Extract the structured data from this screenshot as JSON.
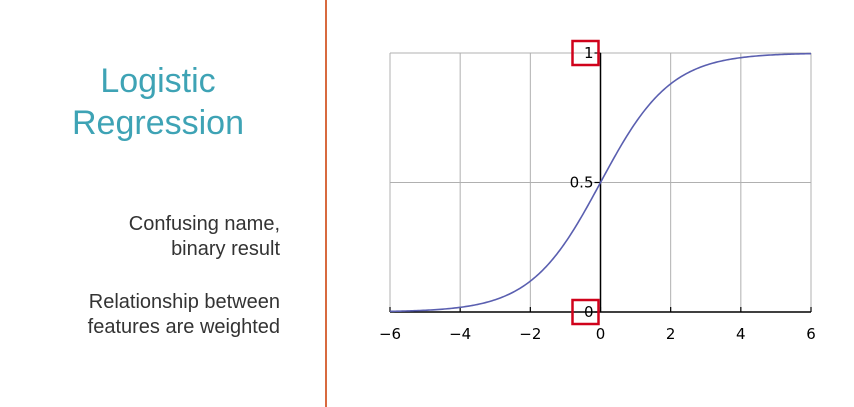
{
  "slide": {
    "title_line1": "Logistic",
    "title_line2": "Regression",
    "point1_line1": "Confusing name,",
    "point1_line2": "binary result",
    "point2_line1": "Relationship between",
    "point2_line2": "features are weighted"
  },
  "colors": {
    "title": "#3ea3b5",
    "divider": "#d86a3f",
    "curve": "#5a5fb0",
    "highlight": "#d0021b"
  },
  "chart_data": {
    "type": "line",
    "function": "sigmoid",
    "xlim": [
      -6,
      6
    ],
    "ylim": [
      0,
      1
    ],
    "x_ticks": [
      -6,
      -4,
      -2,
      0,
      2,
      4,
      6
    ],
    "x_tick_labels": [
      "−6",
      "−4",
      "−2",
      "0",
      "2",
      "4",
      "6"
    ],
    "y_ticks": [
      0,
      0.5,
      1
    ],
    "y_tick_labels": [
      "0",
      "0.5",
      "1"
    ],
    "highlighted_y_ticks": [
      0,
      1
    ],
    "grid": true,
    "x": [
      -6,
      -5,
      -4,
      -3,
      -2,
      -1,
      0,
      1,
      2,
      3,
      4,
      5,
      6
    ],
    "series": [
      {
        "values": [
          0.0025,
          0.0067,
          0.018,
          0.047,
          0.119,
          0.269,
          0.5,
          0.731,
          0.881,
          0.953,
          0.982,
          0.993,
          0.9975
        ]
      }
    ]
  }
}
